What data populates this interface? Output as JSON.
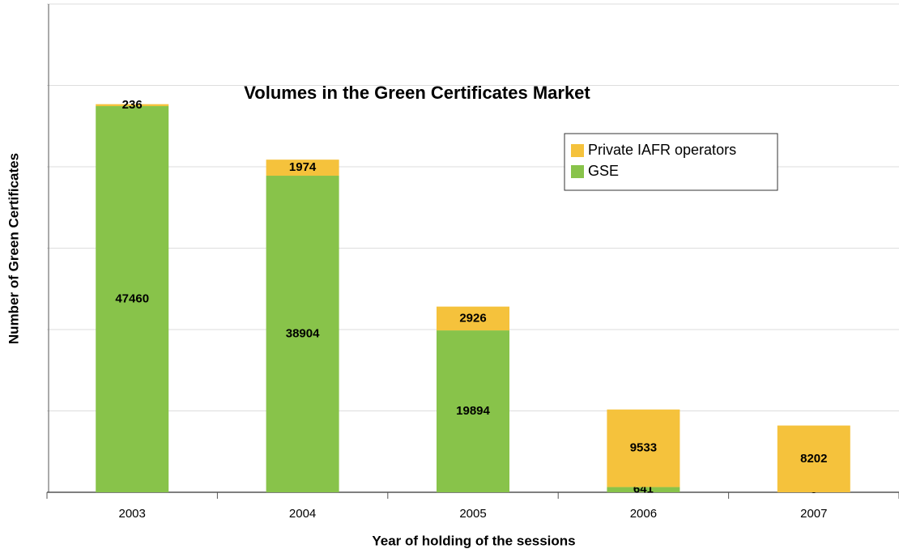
{
  "chart_data": {
    "type": "stacked_bar",
    "title": "Volumes in the Green Certificates Market",
    "x_label": "Year of holding of the sessions",
    "y_label": "Number of Green Certificates",
    "categories": [
      "2003",
      "2004",
      "2005",
      "2006",
      "2007"
    ],
    "series": [
      {
        "name": "GSE",
        "color": "#88c34a",
        "values": [
          47460,
          38904,
          19894,
          641,
          0
        ]
      },
      {
        "name": "Private IAFR operators",
        "color": "#f5c23c",
        "values": [
          236,
          1974,
          2926,
          9533,
          8202
        ]
      }
    ],
    "ylim": [
      0,
      60000
    ],
    "yticks": [
      0,
      10000,
      20000,
      30000,
      40000,
      50000,
      60000
    ],
    "grid": true,
    "legend": "upper right"
  }
}
